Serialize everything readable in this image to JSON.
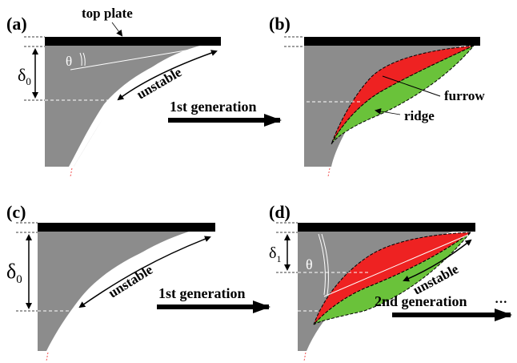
{
  "labels": {
    "top_plate": "top plate",
    "theta": "θ",
    "unstable": "unstable",
    "first_generation": "1st generation",
    "second_generation": "2nd generation",
    "ellipsis": "···",
    "furrow": "furrow",
    "ridge": "ridge",
    "delta": "δ",
    "sub_0": "0",
    "sub_1": "1"
  },
  "panels": [
    {
      "id": "a",
      "letter": "(a)"
    },
    {
      "id": "b",
      "letter": "(b)"
    },
    {
      "id": "c",
      "letter": "(c)"
    },
    {
      "id": "d",
      "letter": "(d)"
    }
  ],
  "colors": {
    "plate": "#000000",
    "fluid": "#8c8c8c",
    "furrow": "#ee2222",
    "ridge": "#6ac23a",
    "dashed": "#ffffff",
    "outline": "#000000"
  }
}
